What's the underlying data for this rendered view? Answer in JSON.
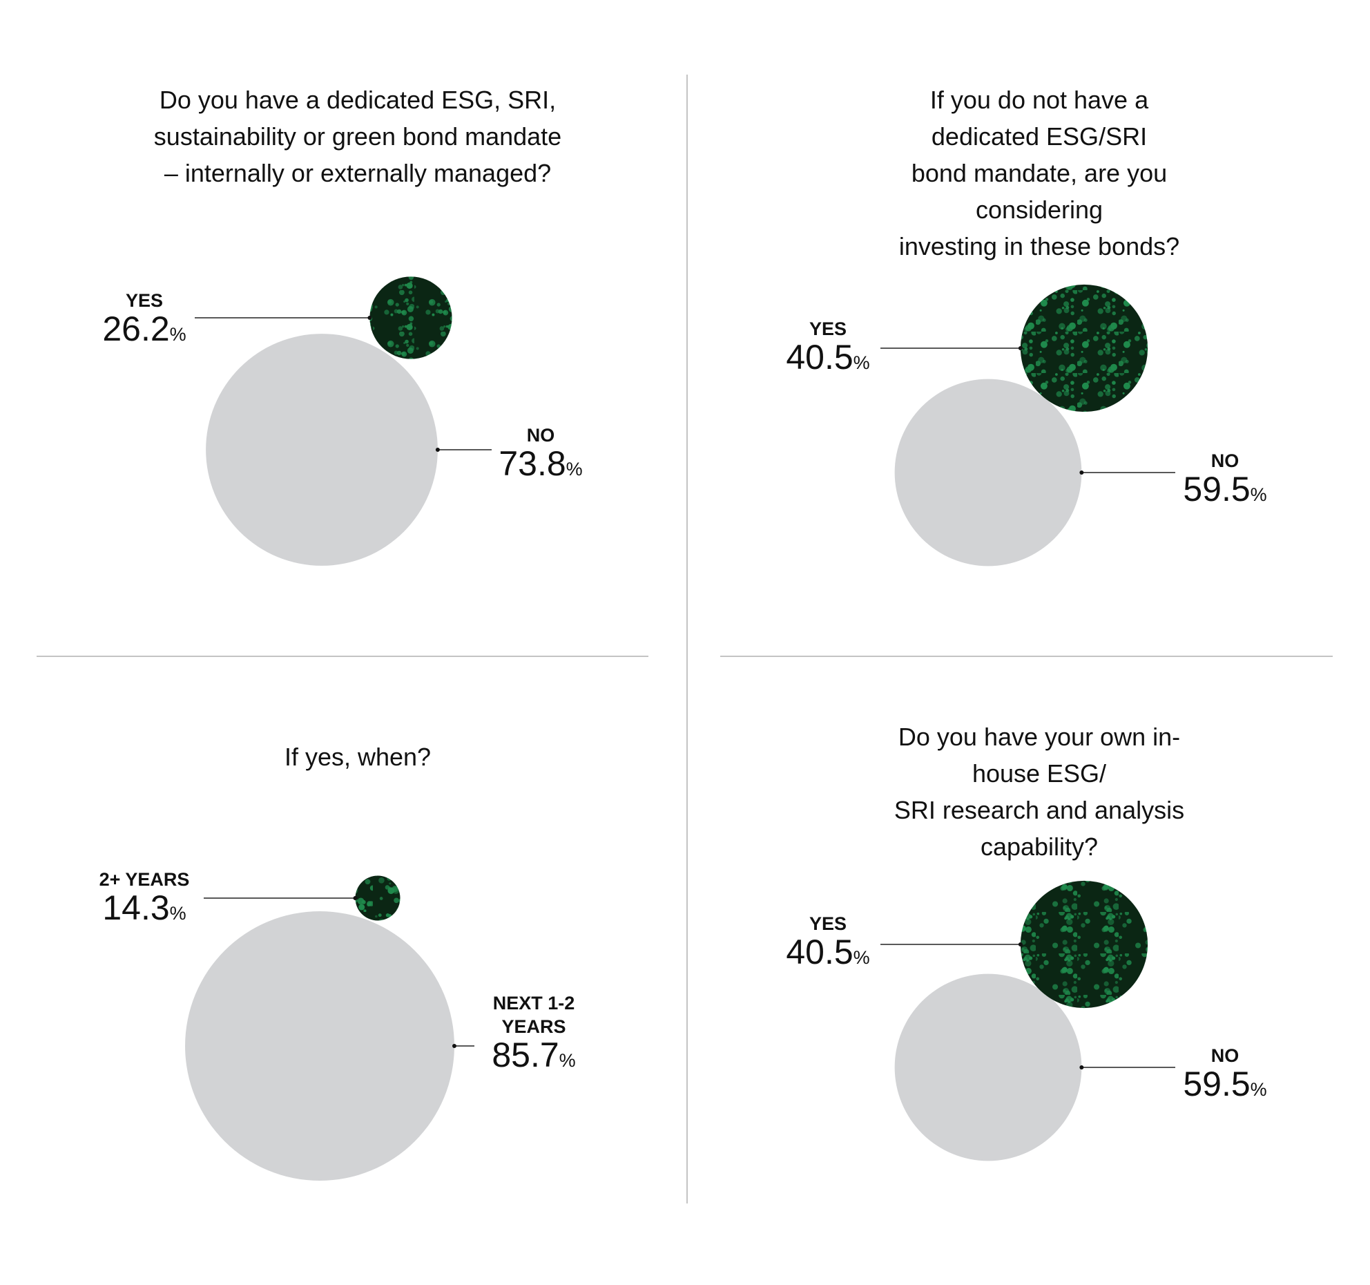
{
  "chart_data": [
    {
      "type": "bubble",
      "title": "Do you have a dedicated ESG, SRI,\nsustainability or green bond mandate\n– internally or externally managed?",
      "categories": [
        "YES",
        "NO"
      ],
      "values": [
        26.2,
        73.8
      ],
      "value_labels": [
        "26.2%",
        "73.8%"
      ],
      "colors": [
        "#0b2614",
        "#d2d3d5"
      ],
      "texture_color": "#1f8a4c"
    },
    {
      "type": "bubble",
      "title": "If you do not have a dedicated ESG/SRI\nbond mandate, are you considering\ninvesting in these bonds?",
      "categories": [
        "YES",
        "NO"
      ],
      "values": [
        40.5,
        59.5
      ],
      "value_labels": [
        "40.5%",
        "59.5%"
      ],
      "colors": [
        "#0b2614",
        "#d2d3d5"
      ],
      "texture_color": "#1f8a4c"
    },
    {
      "type": "bubble",
      "title": "If yes, when?",
      "categories": [
        "2+ YEARS",
        "NEXT 1-2 YEARS"
      ],
      "values": [
        14.3,
        85.7
      ],
      "value_labels": [
        "14.3%",
        "85.7%"
      ],
      "colors": [
        "#0b2614",
        "#d2d3d5"
      ],
      "texture_color": "#1f8a4c"
    },
    {
      "type": "bubble",
      "title": "Do you have your own in-house ESG/\nSRI research and analysis capability?",
      "categories": [
        "YES",
        "NO"
      ],
      "values": [
        40.5,
        59.5
      ],
      "value_labels": [
        "40.5%",
        "59.5%"
      ],
      "colors": [
        "#0b2614",
        "#d2d3d5"
      ],
      "texture_color": "#1f8a4c"
    }
  ]
}
